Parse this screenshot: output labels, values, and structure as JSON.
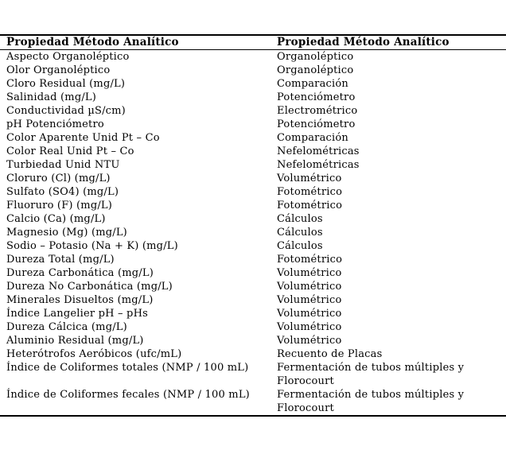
{
  "page": {
    "background_color": "#ffffff",
    "text_color": "#000000",
    "rule_color": "#000000"
  },
  "table": {
    "headers": [
      "Propiedad Método Analítico",
      "Propiedad Método Analítico"
    ],
    "rows": [
      {
        "propiedad": "Aspecto Organoléptico",
        "metodo": "Organoléptico"
      },
      {
        "propiedad": "Olor Organoléptico",
        "metodo": "Organoléptico"
      },
      {
        "propiedad": "Cloro Residual (mg/L)",
        "metodo": "Comparación"
      },
      {
        "propiedad": "Salinidad (mg/L)",
        "metodo": "Potenciómetro"
      },
      {
        "propiedad": "Conductividad µS/cm)",
        "metodo": "Electrométrico"
      },
      {
        "propiedad": "pH Potenciómetro",
        "metodo": "Potenciómetro"
      },
      {
        "propiedad": "Color Aparente Unid Pt – Co",
        "metodo": "Comparación"
      },
      {
        "propiedad": "Color Real Unid Pt – Co",
        "metodo": "Nefelométricas"
      },
      {
        "propiedad": "Turbiedad Unid NTU",
        "metodo": "Nefelométricas"
      },
      {
        "propiedad": "Cloruro (Cl) (mg/L)",
        "metodo": "Volumétrico"
      },
      {
        "propiedad": "Sulfato (SO4) (mg/L)",
        "metodo": "Fotométrico"
      },
      {
        "propiedad": "Fluoruro (F) (mg/L)",
        "metodo": "Fotométrico"
      },
      {
        "propiedad": "Calcio (Ca) (mg/L)",
        "metodo": "Cálculos"
      },
      {
        "propiedad": "Magnesio (Mg) (mg/L)",
        "metodo": "Cálculos"
      },
      {
        "propiedad": "Sodio – Potasio (Na + K) (mg/L)",
        "metodo": "Cálculos"
      },
      {
        "propiedad": "Dureza Total (mg/L)",
        "metodo": "Fotométrico"
      },
      {
        "propiedad": "Dureza Carbonática (mg/L)",
        "metodo": "Volumétrico"
      },
      {
        "propiedad": "Dureza No Carbonática (mg/L)",
        "metodo": "Volumétrico"
      },
      {
        "propiedad": "Minerales Disueltos (mg/L)",
        "metodo": "Volumétrico"
      },
      {
        "propiedad": "Índice Langelier pH – pHs",
        "metodo": "Volumétrico"
      },
      {
        "propiedad": "Dureza Cálcica (mg/L)",
        "metodo": "Volumétrico"
      },
      {
        "propiedad": "Aluminio Residual (mg/L)",
        "metodo": "Volumétrico"
      },
      {
        "propiedad": "Heterótrofos Aeróbicos (ufc/mL)",
        "metodo": "Recuento de Placas"
      },
      {
        "propiedad": "Índice de Coliformes totales (NMP / 100 mL)",
        "metodo": "Fermentación de tubos múltiples y\nFlorocourt"
      },
      {
        "propiedad": "Índice de Coliformes fecales (NMP / 100 mL)",
        "metodo": "Fermentación de tubos múltiples y\nFlorocourt"
      }
    ]
  }
}
